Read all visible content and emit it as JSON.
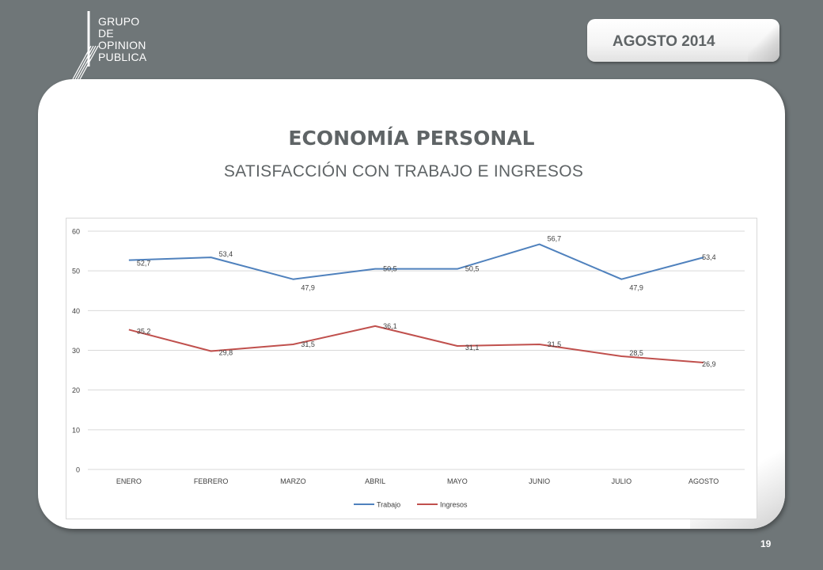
{
  "header": {
    "logo_lines": [
      "GRUPO",
      "DE",
      "OPINION",
      "PUBLICA"
    ],
    "date_label": "AGOSTO  2014"
  },
  "main": {
    "title": "ECONOMÍA PERSONAL",
    "subtitle": "SATISFACCIÓN CON TRABAJO E INGRESOS"
  },
  "footer": {
    "page_number": "19"
  },
  "colors": {
    "trabajo": "#4f81bd",
    "ingresos": "#c0504d",
    "background": "#6f7678"
  },
  "chart_data": {
    "type": "line",
    "categories": [
      "ENERO",
      "FEBRERO",
      "MARZO",
      "ABRIL",
      "MAYO",
      "JUNIO",
      "JULIO",
      "AGOSTO"
    ],
    "series": [
      {
        "name": "Trabajo",
        "values": [
          52.7,
          53.4,
          47.9,
          50.5,
          50.5,
          56.7,
          47.9,
          53.4
        ],
        "labels": [
          "52,7",
          "53,4",
          "47,9",
          "50,5",
          "50,5",
          "56,7",
          "47,9",
          "53,4"
        ]
      },
      {
        "name": "Ingresos",
        "values": [
          35.2,
          29.8,
          31.5,
          36.1,
          31.1,
          31.5,
          28.5,
          26.9
        ],
        "labels": [
          "35,2",
          "29,8",
          "31,5",
          "36,1",
          "31,1",
          "31,5",
          "28,5",
          "26,9"
        ]
      }
    ],
    "y_ticks": [
      0,
      10,
      20,
      30,
      40,
      50,
      60
    ],
    "ylim": [
      0,
      60
    ],
    "grid": true,
    "legend": "bottom"
  }
}
